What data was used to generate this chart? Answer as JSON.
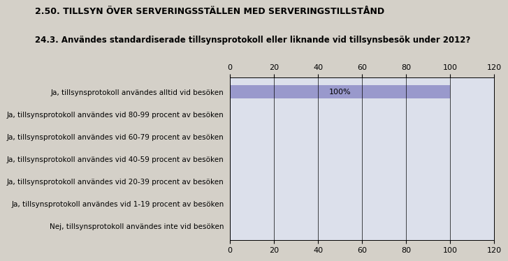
{
  "title": "2.50. TILLSYN ÖVER SERVERINGSSTÄLLEN MED SERVERINGSTILLSTÅND",
  "subtitle": "24.3. Användes standardiserade tillsynsprotokoll eller liknande vid tillsynsbesök under 2012?",
  "categories": [
    "Ja, tillsynsprotokoll användes alltid vid besöken",
    "Ja, tillsynsprotokoll användes vid 80-99 procent av besöken",
    "Ja, tillsynsprotokoll användes vid 60-79 procent av besöken",
    "Ja, tillsynsprotokoll användes vid 40-59 procent av besöken",
    "Ja, tillsynsprotokoll användes vid 20-39 procent av besöken",
    "Ja, tillsynsprotokoll användes vid 1-19 procent av besöken",
    "Nej, tillsynsprotokoll användes inte vid besöken"
  ],
  "values": [
    100,
    0,
    0,
    0,
    0,
    0,
    0
  ],
  "bar_color": "#9999cc",
  "bar_label": "100%",
  "bar_label_color": "#000000",
  "outer_bg_color": "#d4d0c8",
  "plot_bg_color": "#dce0eb",
  "xlim": [
    0,
    120
  ],
  "xticks": [
    0,
    20,
    40,
    60,
    80,
    100,
    120
  ],
  "title_fontsize": 9,
  "subtitle_fontsize": 8.5,
  "tick_fontsize": 8,
  "label_fontsize": 7.5
}
